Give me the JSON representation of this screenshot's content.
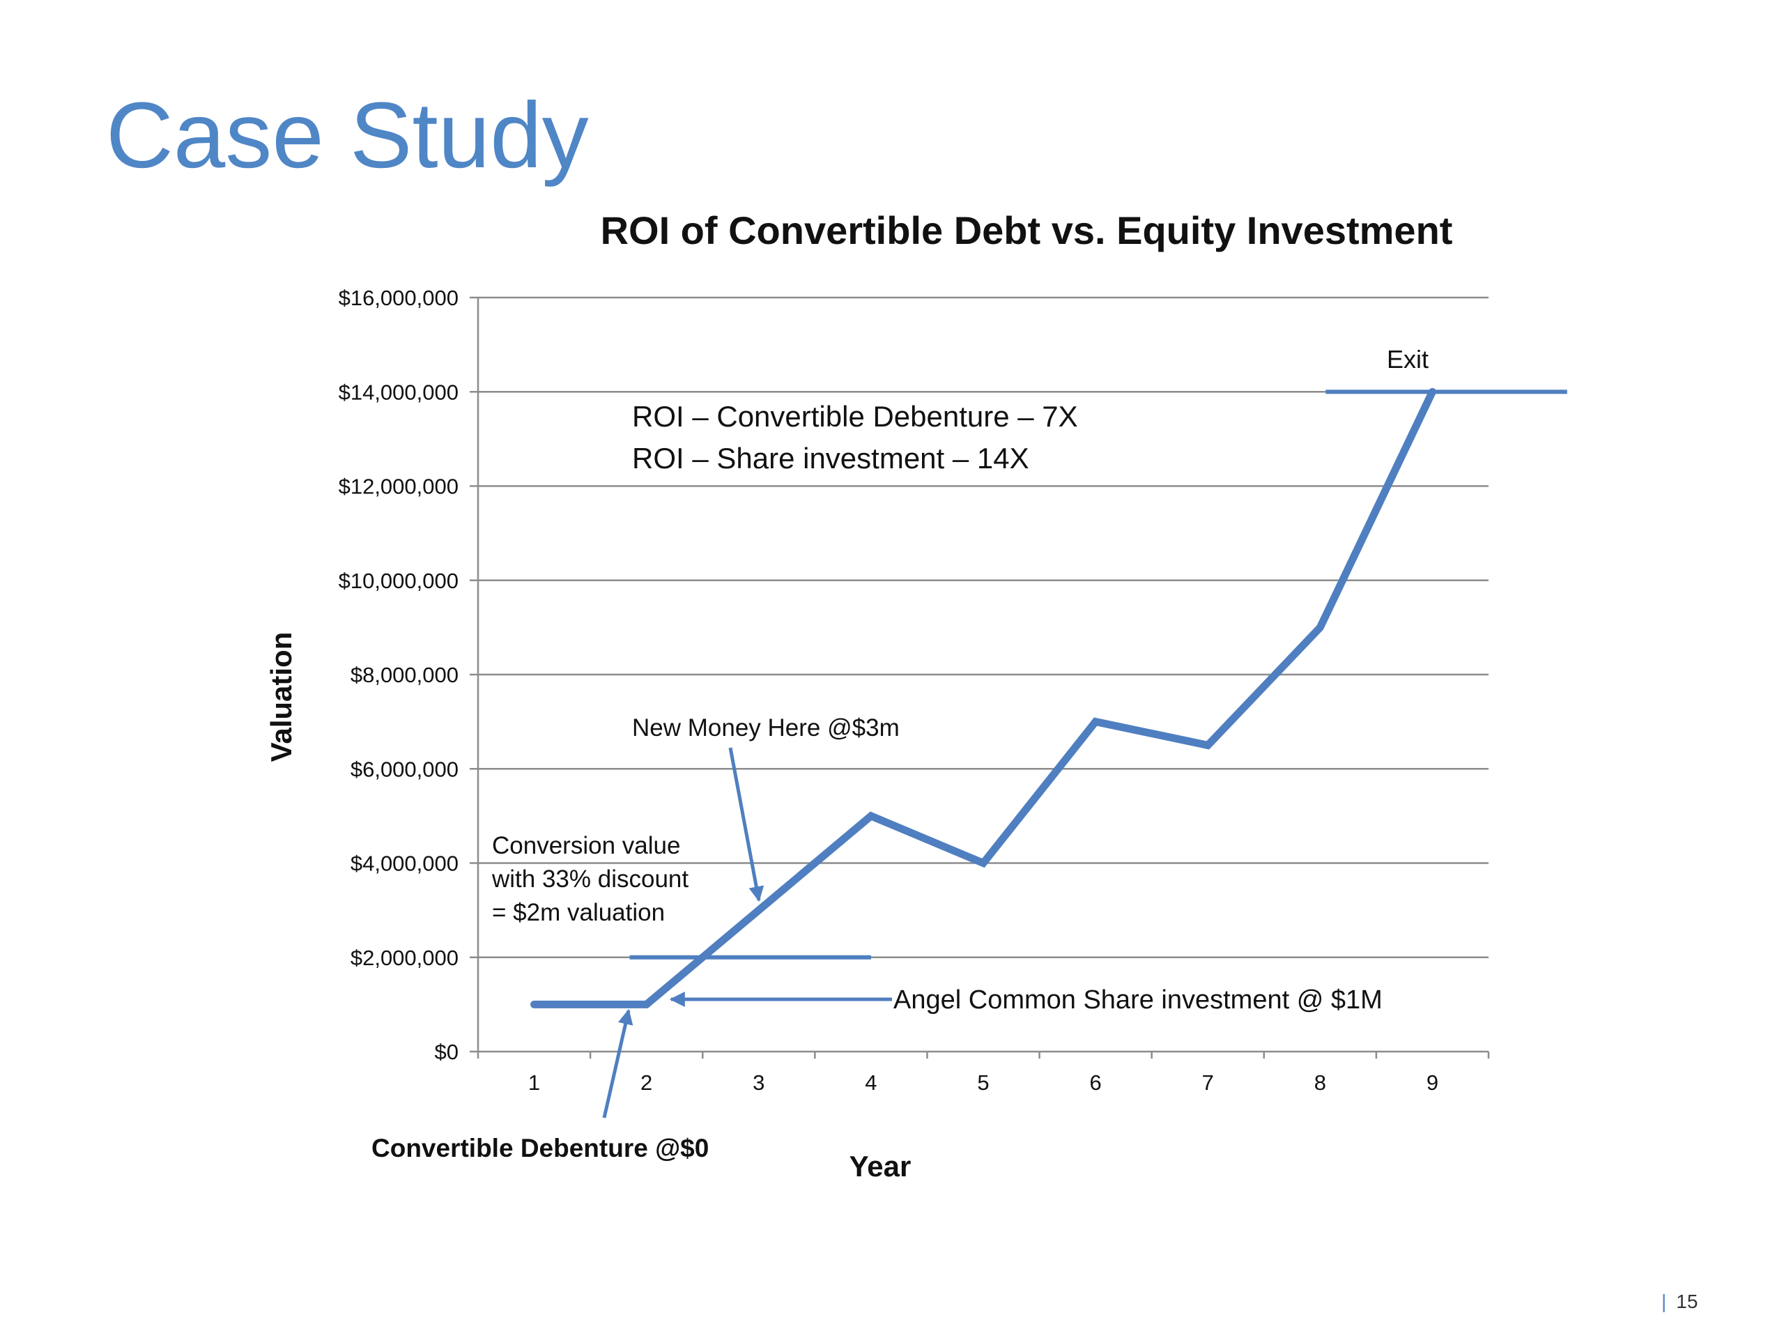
{
  "slide": {
    "title": "Case Study",
    "page_number": "15",
    "accent_color": "#4F86C6"
  },
  "chart_data": {
    "type": "line",
    "title": "ROI of Convertible Debt vs. Equity Investment",
    "xlabel": "Year",
    "ylabel": "Valuation",
    "categories": [
      "1",
      "2",
      "3",
      "4",
      "5",
      "6",
      "7",
      "8",
      "9"
    ],
    "series": [
      {
        "values": [
          1000000,
          1000000,
          3000000,
          5000000,
          4000000,
          7000000,
          6500000,
          9000000,
          14000000
        ],
        "color": "#4F7FC0"
      }
    ],
    "ylim": [
      0,
      16000000
    ],
    "y_ticks": [
      {
        "value": 0,
        "label": "$0"
      },
      {
        "value": 2000000,
        "label": "$2,000,000"
      },
      {
        "value": 4000000,
        "label": "$4,000,000"
      },
      {
        "value": 6000000,
        "label": "$6,000,000"
      },
      {
        "value": 8000000,
        "label": "$8,000,000"
      },
      {
        "value": 10000000,
        "label": "$10,000,000"
      },
      {
        "value": 12000000,
        "label": "$12,000,000"
      },
      {
        "value": 14000000,
        "label": "$14,000,000"
      },
      {
        "value": 16000000,
        "label": "$16,000,000"
      }
    ],
    "grid": true,
    "legend": "none",
    "annotations": {
      "roi_lines": [
        "ROI – Convertible Debenture – 7X",
        "ROI – Share investment – 14X"
      ],
      "exit_label": "Exit",
      "new_money": "New Money Here @$3m",
      "conversion_lines": [
        "Conversion value",
        "with 33% discount",
        "= $2m valuation"
      ],
      "angel": "Angel Common Share investment @ $1M",
      "debenture": "Convertible Debenture @$0",
      "exit_line": {
        "value": 14000000,
        "x_from": 8.05,
        "x_to": 10.2
      },
      "conversion_line": {
        "value": 2000000,
        "x_from": 1.85,
        "x_to": 4.0
      }
    }
  }
}
